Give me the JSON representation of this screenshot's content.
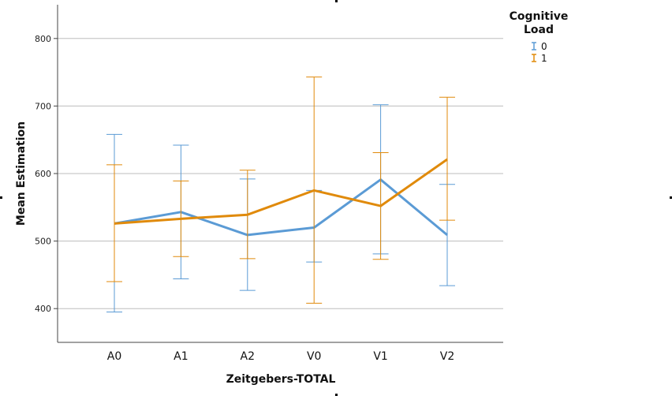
{
  "chart_data": {
    "type": "line",
    "xlabel": "Zeitgebers-TOTAL",
    "ylabel": "Mean Estimation",
    "categories": [
      "A0",
      "A1",
      "A2",
      "V0",
      "V1",
      "V2"
    ],
    "ylim": [
      350,
      850
    ],
    "yticks": [
      "400",
      "500",
      "600",
      "700",
      "800"
    ],
    "grid": true,
    "legend": {
      "title_line1": "Cognitive",
      "title_line2": "Load",
      "position": "top-right"
    },
    "series": [
      {
        "name": "0",
        "color": "#5b9bd5",
        "values": [
          526,
          543,
          509,
          520,
          591,
          509
        ],
        "error_low": [
          395,
          444,
          427,
          469,
          481,
          434
        ],
        "error_high": [
          658,
          642,
          592,
          575,
          702,
          584
        ]
      },
      {
        "name": "1",
        "color": "#e08a0b",
        "values": [
          526,
          533,
          539,
          575,
          552,
          621
        ],
        "error_low": [
          440,
          477,
          474,
          408,
          473,
          531
        ],
        "error_high": [
          613,
          589,
          605,
          743,
          631,
          713
        ]
      }
    ]
  }
}
